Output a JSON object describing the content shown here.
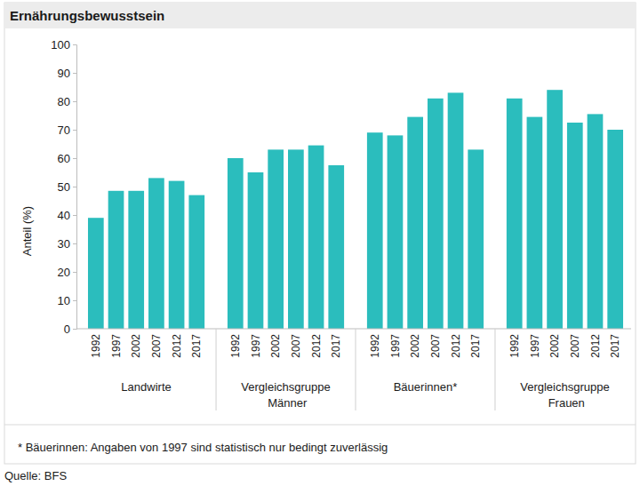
{
  "chart_data": {
    "type": "bar",
    "title": "Ernährungsbewusstsein",
    "y_label": "Anteil (%)",
    "categories": [
      "1992",
      "1997",
      "2002",
      "2007",
      "2012",
      "2017"
    ],
    "series": [
      {
        "name": "Landwirte",
        "values": [
          39,
          48.5,
          48.5,
          53,
          52,
          47
        ]
      },
      {
        "name": "Vergleichsgruppe Männer",
        "values": [
          60,
          55,
          63,
          63,
          64.5,
          57.5
        ]
      },
      {
        "name": "Bäuerinnen*",
        "values": [
          69,
          68,
          74.5,
          81,
          83,
          63
        ]
      },
      {
        "name": "Vergleichsgruppe Frauen",
        "values": [
          81,
          74.5,
          84,
          72.5,
          75.5,
          70
        ]
      }
    ],
    "color": "#2bbdbd",
    "ylim": [
      0,
      100
    ],
    "yticks": [
      0,
      10,
      20,
      30,
      40,
      50,
      60,
      70,
      80,
      90,
      100
    ],
    "grid": false,
    "note": "* Bäuerinnen: Angaben von 1997 sind statistisch nur bedingt zuverlässig",
    "source": "Quelle: BFS"
  }
}
